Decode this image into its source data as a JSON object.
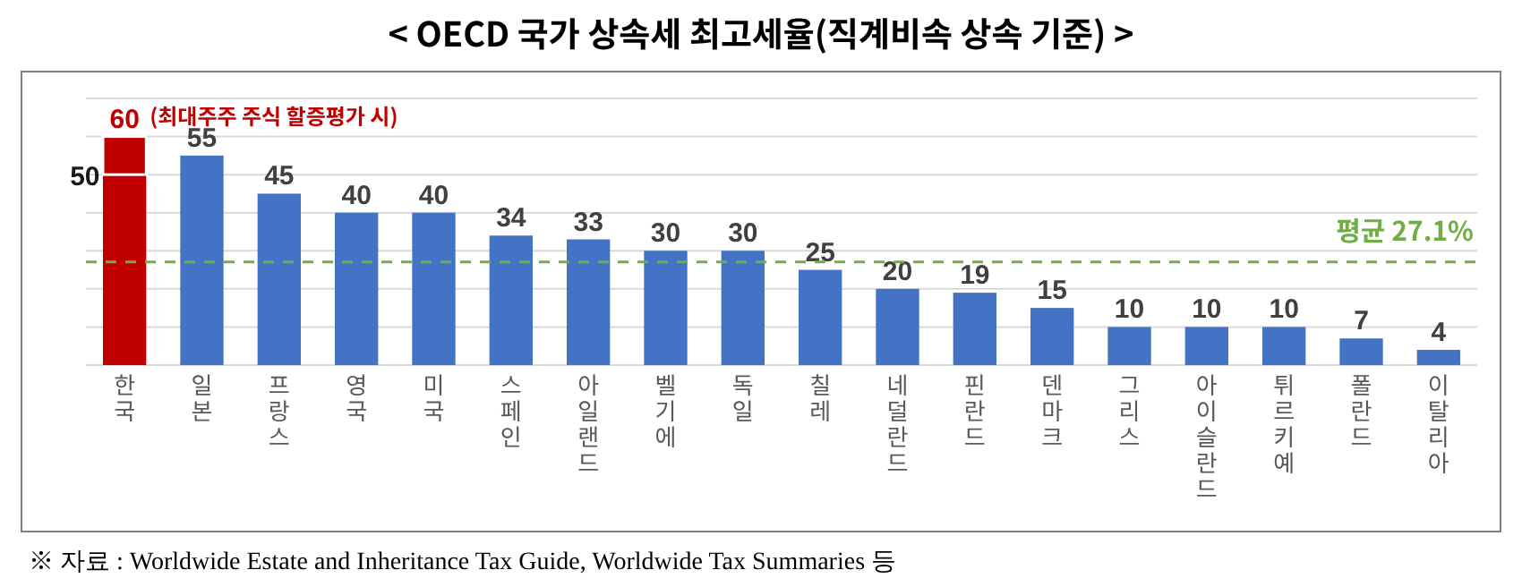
{
  "chart_data": {
    "type": "bar",
    "stacked": true,
    "title": "< OECD 국가 상속세 최고세율(직계비속 상속 기준) >",
    "categories": [
      "한국",
      "일본",
      "프랑스",
      "영국",
      "미국",
      "스페인",
      "아일랜드",
      "벨기에",
      "독일",
      "칠레",
      "네덜란드",
      "핀란드",
      "덴마크",
      "그리스",
      "아이슬란드",
      "튀르키예",
      "폴란드",
      "이탈리아"
    ],
    "series": [
      {
        "colors": [
          "#c00000",
          "#4472c4",
          "#4472c4",
          "#4472c4",
          "#4472c4",
          "#4472c4",
          "#4472c4",
          "#4472c4",
          "#4472c4",
          "#4472c4",
          "#4472c4",
          "#4472c4",
          "#4472c4",
          "#4472c4",
          "#4472c4",
          "#4472c4",
          "#4472c4",
          "#4472c4"
        ],
        "values": [
          50,
          55,
          45,
          40,
          40,
          34,
          33,
          30,
          30,
          25,
          20,
          19,
          15,
          10,
          10,
          10,
          7,
          4
        ],
        "value_labels": [
          "50",
          "55",
          "45",
          "40",
          "40",
          "34",
          "33",
          "30",
          "30",
          "25",
          "20",
          "19",
          "15",
          "10",
          "10",
          "10",
          "7",
          "4"
        ]
      },
      {
        "color": "#c00000",
        "values": [
          10,
          null,
          null,
          null,
          null,
          null,
          null,
          null,
          null,
          null,
          null,
          null,
          null,
          null,
          null,
          null,
          null,
          null
        ]
      }
    ],
    "totals": [
      "60",
      null,
      null,
      null,
      null,
      null,
      null,
      null,
      null,
      null,
      null,
      null,
      null,
      null,
      null,
      null,
      null,
      null
    ],
    "ylim": [
      0,
      70
    ],
    "yticks": [
      {
        "value": 0,
        "label": null
      },
      {
        "value": 10,
        "label": null
      },
      {
        "value": 20,
        "label": null
      },
      {
        "value": 30,
        "label": null
      },
      {
        "value": 40,
        "label": null
      },
      {
        "value": 50,
        "label": null
      },
      {
        "value": 60,
        "label": null
      },
      {
        "value": 70,
        "label": null
      }
    ],
    "grid": "y",
    "ref_lines": [
      {
        "axis": "y",
        "value": 27.1,
        "label": "평균 27.1%",
        "color": "#70ad47",
        "line_style": "dashed"
      }
    ],
    "annotations": [
      {
        "text": "(최대주주 주식 할증평가 시)",
        "x": "한국",
        "y": 60
      },
      "※ 자료 : Worldwide Estate and Inheritance Tax Guide, Worldwide Tax Summaries 등"
    ]
  }
}
